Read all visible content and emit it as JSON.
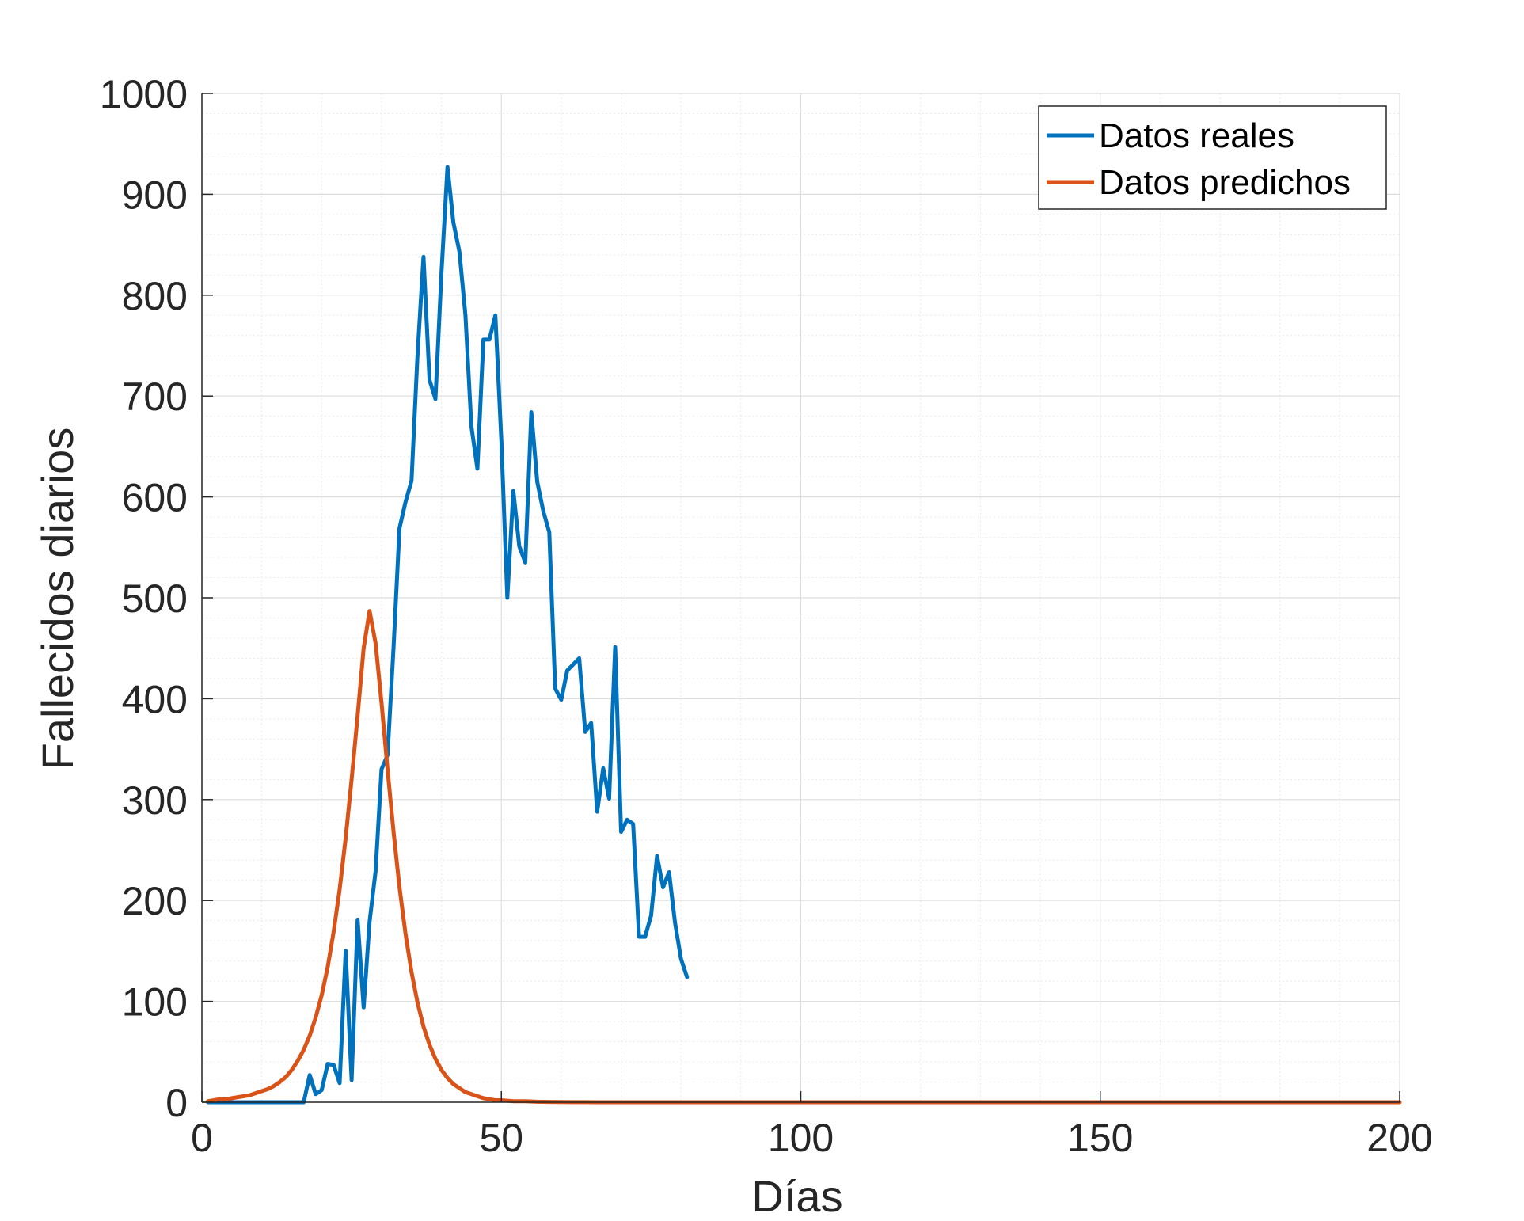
{
  "chart_data": {
    "type": "line",
    "title": "",
    "xlabel": "Días",
    "ylabel": "Fallecidos diarios",
    "xlim": [
      0,
      200
    ],
    "ylim": [
      0,
      1000
    ],
    "xticks": [
      0,
      50,
      100,
      150,
      200
    ],
    "yticks": [
      0,
      100,
      200,
      300,
      400,
      500,
      600,
      700,
      800,
      900,
      1000
    ],
    "grid": true,
    "minor_grid": true,
    "legend_position": "top-right",
    "series": [
      {
        "name": "Datos reales",
        "color": "#0072BD",
        "x": [
          1,
          2,
          3,
          4,
          5,
          6,
          7,
          8,
          9,
          10,
          11,
          12,
          13,
          14,
          15,
          16,
          17,
          18,
          19,
          20,
          21,
          22,
          23,
          24,
          25,
          26,
          27,
          28,
          29,
          30,
          31,
          32,
          33,
          34,
          35,
          36,
          37,
          38,
          39,
          40,
          41,
          42,
          43,
          44,
          45,
          46,
          47,
          48,
          49,
          50,
          51,
          52,
          53,
          54,
          55,
          56,
          57,
          58,
          59,
          60,
          61,
          62,
          63,
          64,
          65,
          66,
          67,
          68,
          69,
          70,
          71,
          72,
          73,
          74,
          75,
          76,
          77,
          78,
          79,
          80,
          81
        ],
        "y": [
          0,
          0,
          0,
          0,
          0,
          0,
          0,
          0,
          0,
          0,
          0,
          0,
          0,
          0,
          0,
          0,
          0,
          27,
          8,
          12,
          38,
          37,
          19,
          150,
          22,
          181,
          94,
          179,
          229,
          330,
          344,
          451,
          569,
          595,
          616,
          740,
          838,
          716,
          697,
          822,
          927,
          872,
          843,
          780,
          670,
          628,
          756,
          756,
          780,
          655,
          500,
          606,
          551,
          535,
          684,
          615,
          586,
          565,
          410,
          399,
          428,
          434,
          440,
          367,
          376,
          288,
          331,
          301,
          451,
          268,
          280,
          276,
          164,
          164,
          185,
          244,
          213,
          228,
          178,
          142,
          124
        ]
      },
      {
        "name": "Datos predichos",
        "color": "#D95319",
        "x": [
          1,
          2,
          3,
          4,
          5,
          6,
          7,
          8,
          9,
          10,
          11,
          12,
          13,
          14,
          15,
          16,
          17,
          18,
          19,
          20,
          21,
          22,
          23,
          24,
          25,
          26,
          27,
          28,
          29,
          30,
          31,
          32,
          33,
          34,
          35,
          36,
          37,
          38,
          39,
          40,
          41,
          42,
          43,
          44,
          45,
          46,
          47,
          48,
          49,
          50,
          52,
          54,
          56,
          58,
          60,
          62,
          64,
          66,
          68,
          70,
          75,
          80,
          90,
          100,
          120,
          140,
          160,
          180,
          200
        ],
        "y": [
          1,
          2,
          3,
          3,
          4,
          5,
          6,
          7,
          9,
          11,
          13,
          16,
          20,
          25,
          32,
          41,
          52,
          66,
          84,
          106,
          134,
          169,
          211,
          262,
          320,
          383,
          450,
          487,
          455,
          396,
          330,
          268,
          213,
          167,
          129,
          99,
          75,
          57,
          43,
          32,
          24,
          18,
          14,
          10,
          8,
          6,
          4,
          3,
          2,
          2,
          1,
          1,
          0.5,
          0.3,
          0.2,
          0.1,
          0.1,
          0,
          0,
          0,
          0,
          0,
          0,
          0,
          0,
          0,
          0,
          0,
          0
        ]
      }
    ]
  }
}
